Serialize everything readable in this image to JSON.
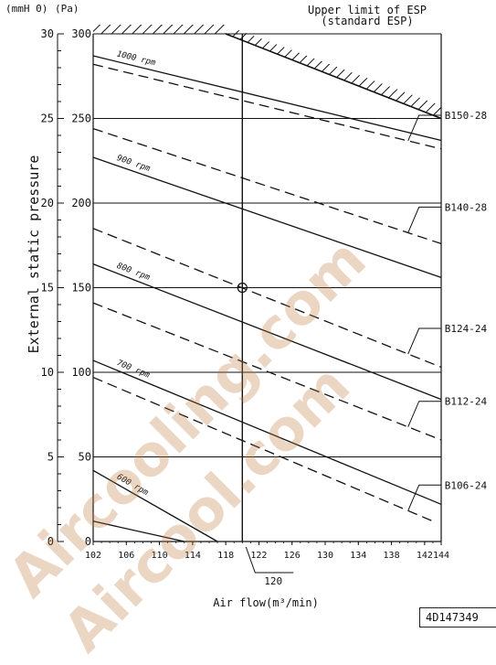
{
  "chart_data": {
    "type": "line",
    "title": "",
    "xlabel": "Air flow(m³/min)",
    "ylabel": "External static pressure",
    "unit_left": "(mmH 0)",
    "unit_right": "(Pa)",
    "xlim": [
      102,
      144
    ],
    "ylim": [
      0,
      300
    ],
    "x_ticks": [
      "102",
      "106",
      "110",
      "114",
      "118",
      "122",
      "126",
      "130",
      "134",
      "138",
      "142",
      "144"
    ],
    "y_ticks_pa": [
      "0",
      "50",
      "100",
      "150",
      "200",
      "250",
      "300"
    ],
    "y_ticks_mmh2o": [
      "0",
      "5",
      "10",
      "15",
      "20",
      "25",
      "30"
    ],
    "limit_label": "Upper limit of ESP\n(standard ESP)",
    "limit_line": [
      [
        118,
        300
      ],
      [
        144,
        250
      ]
    ],
    "reference_point": {
      "x": 120,
      "y": 150,
      "label": "120"
    },
    "rpm_series": [
      {
        "name": "1000 rpm",
        "x": [
          102,
          144
        ],
        "y": [
          287,
          237
        ]
      },
      {
        "name": "900 rpm",
        "x": [
          102,
          144
        ],
        "y": [
          227,
          156
        ]
      },
      {
        "name": "800 rpm",
        "x": [
          102,
          144
        ],
        "y": [
          164,
          84
        ]
      },
      {
        "name": "700 rpm",
        "x": [
          102,
          144
        ],
        "y": [
          107,
          22
        ]
      },
      {
        "name": "600 rpm",
        "x": [
          102,
          117
        ],
        "y": [
          42,
          0
        ]
      },
      {
        "name": "",
        "x": [
          102,
          113
        ],
        "y": [
          12,
          0
        ]
      }
    ],
    "model_series": [
      {
        "name": "B150-28",
        "x": [
          102,
          144
        ],
        "y": [
          282,
          232
        ]
      },
      {
        "name": "B140-28",
        "x": [
          102,
          144
        ],
        "y": [
          244,
          176
        ]
      },
      {
        "name": "B124-24",
        "x": [
          102,
          144
        ],
        "y": [
          185,
          103
        ]
      },
      {
        "name": "B112-24",
        "x": [
          102,
          144
        ],
        "y": [
          141,
          60
        ]
      },
      {
        "name": "B106-24",
        "x": [
          102,
          143
        ],
        "y": [
          97,
          12
        ]
      }
    ]
  },
  "document_id": "4D147349"
}
